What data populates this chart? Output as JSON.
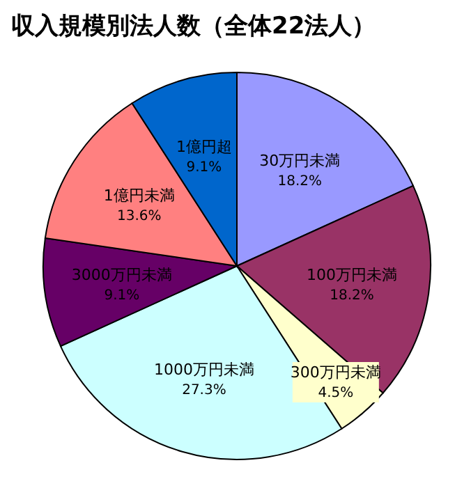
{
  "chart_data": {
    "type": "pie",
    "title": "収入規模別法人数（全体22法人）",
    "categories": [
      "30万円未満",
      "100万円未満",
      "300万円未満",
      "1000万円未満",
      "3000万円未満",
      "1億円未満",
      "1億円超"
    ],
    "values": [
      18.2,
      18.2,
      4.5,
      27.3,
      9.1,
      13.6,
      9.1
    ],
    "value_labels": [
      "18.2%",
      "18.2%",
      "4.5%",
      "27.3%",
      "9.1%",
      "13.6%",
      "9.1%"
    ],
    "colors": [
      "#9999ff",
      "#993366",
      "#ffffcc",
      "#ccffff",
      "#660066",
      "#ff8080",
      "#0066cc"
    ]
  }
}
